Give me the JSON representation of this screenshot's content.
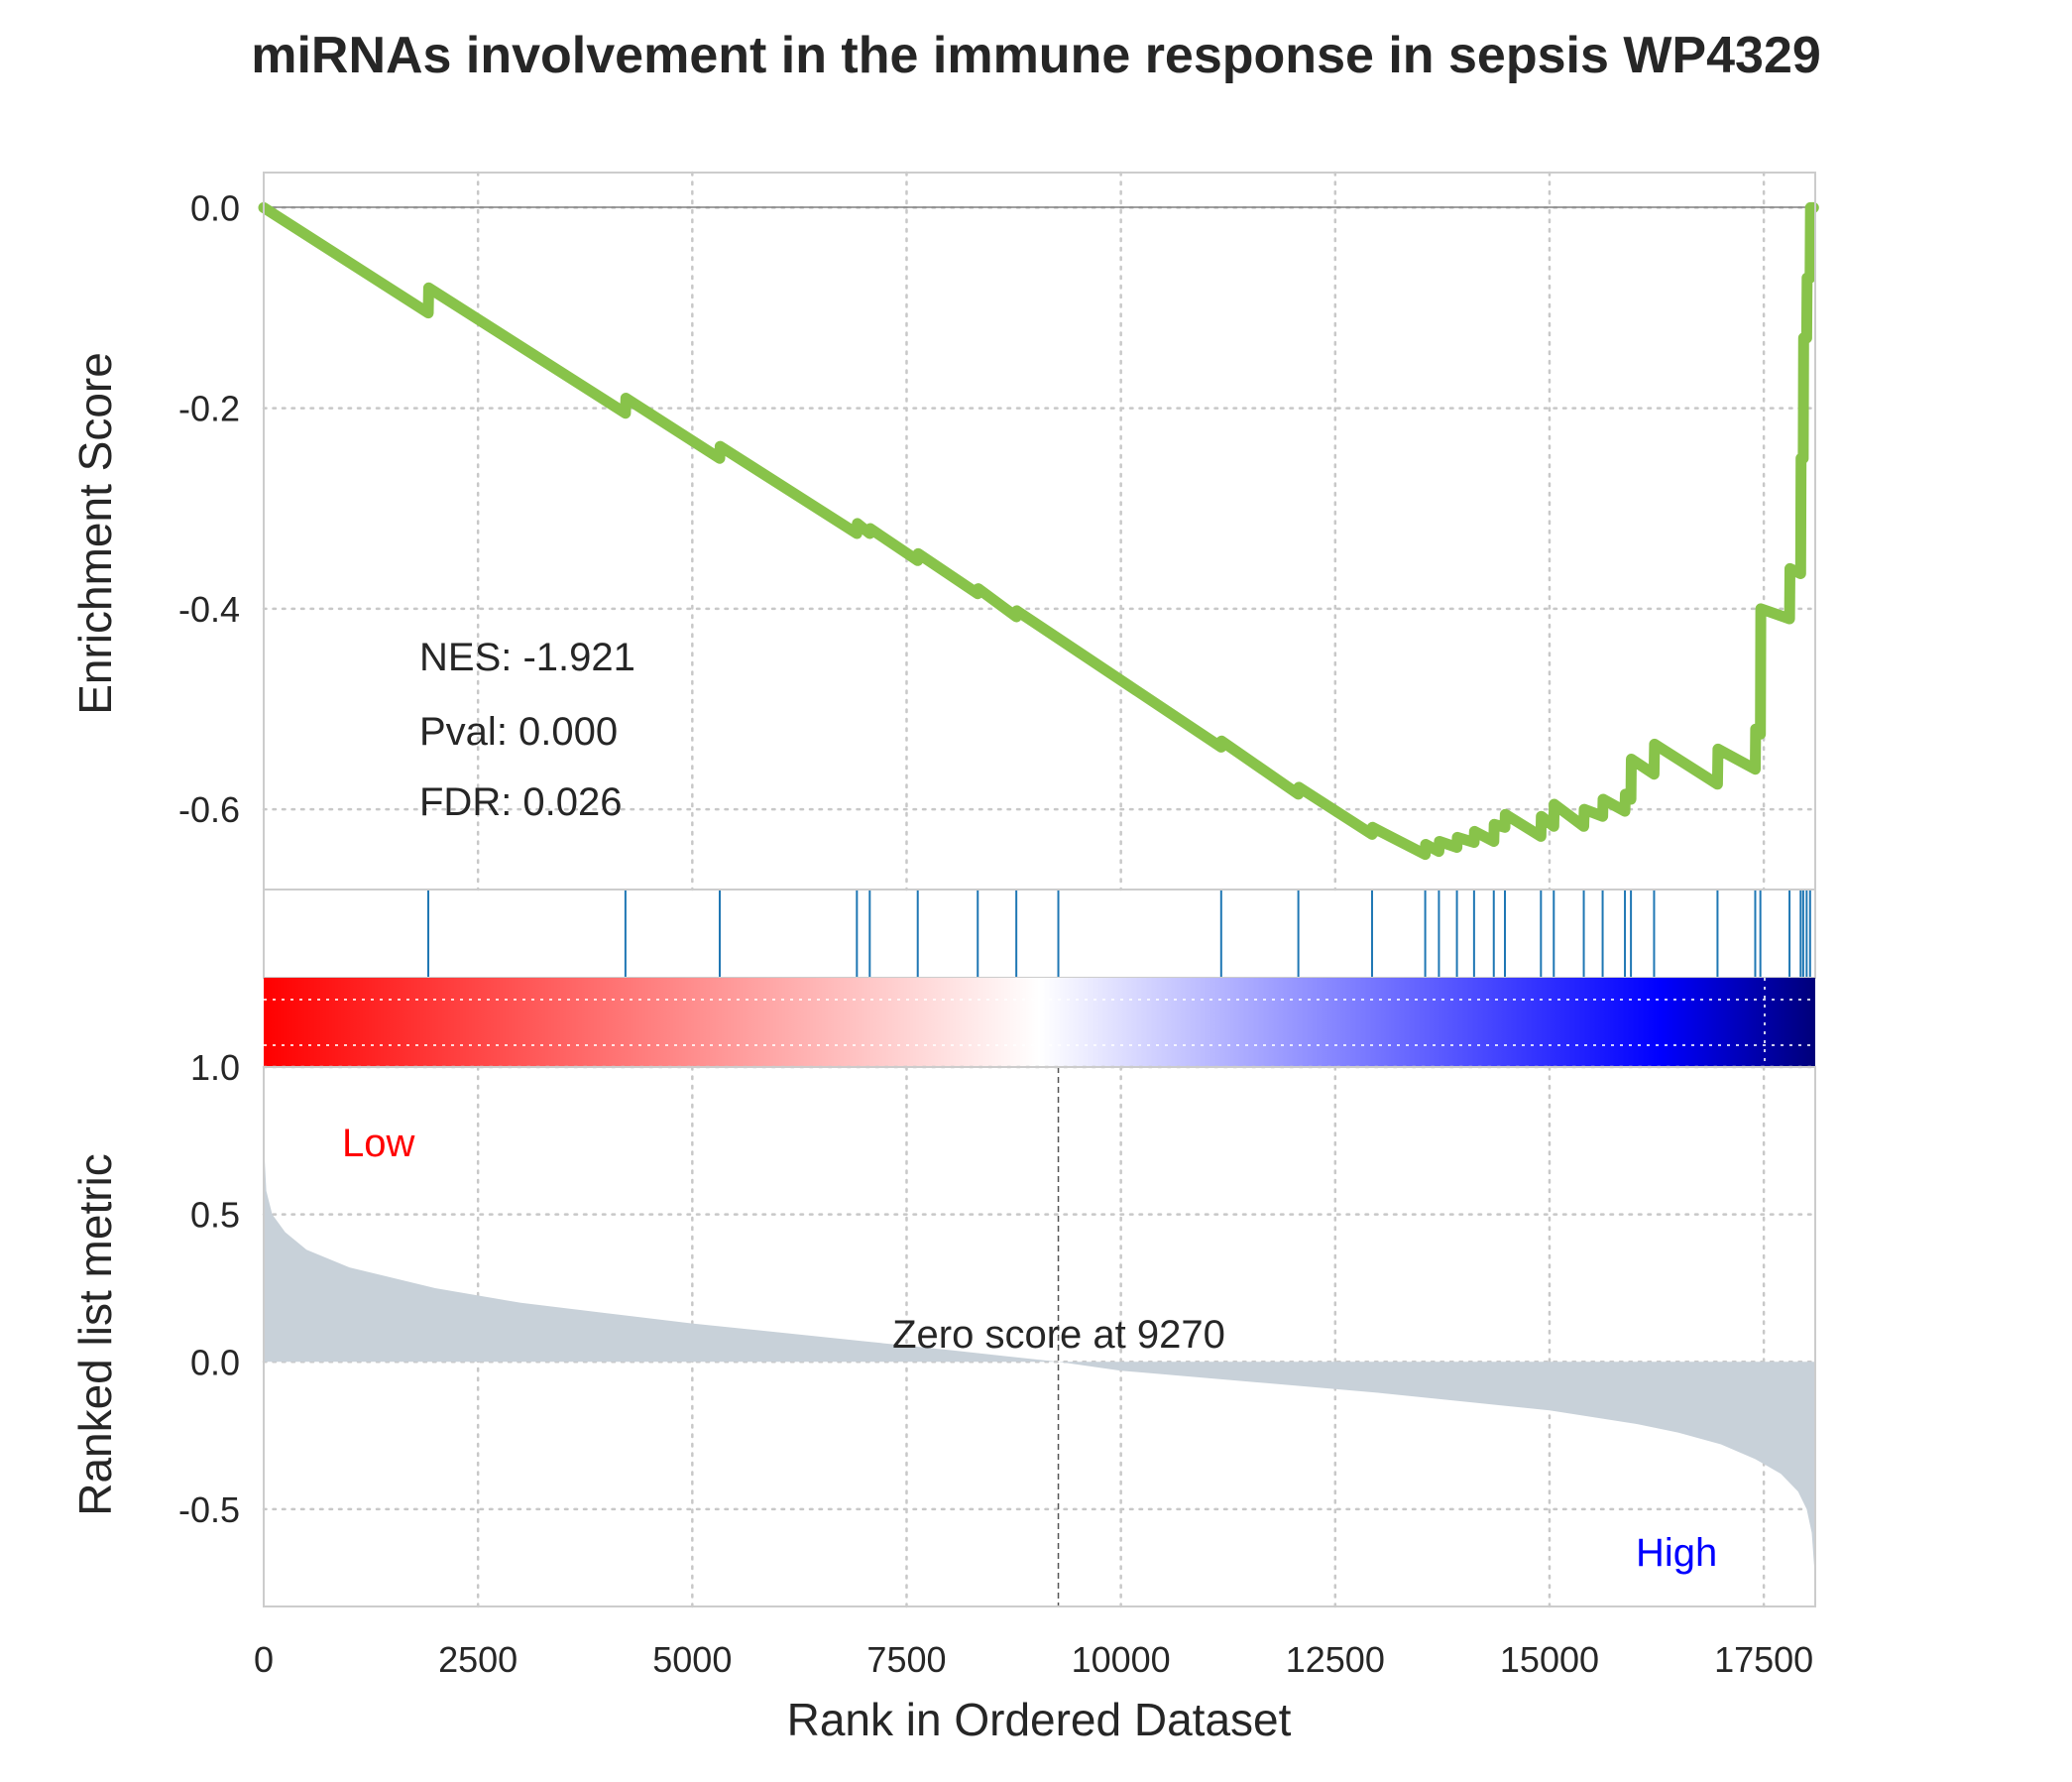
{
  "chart_data": {
    "type": "line",
    "title": "miRNAs involvement in the immune response in sepsis WP4329",
    "xlabel": "Rank in Ordered Dataset",
    "xlim": [
      0,
      18100
    ],
    "xticks": [
      "0",
      "2500",
      "5000",
      "7500",
      "10000",
      "12500",
      "15000",
      "17500"
    ],
    "xtick_values": [
      0,
      2500,
      5000,
      7500,
      10000,
      12500,
      15000,
      17500
    ],
    "grid": true,
    "enrichment_panel": {
      "ylabel": "Enrichment Score",
      "ylim": [
        -0.68,
        0.035
      ],
      "yticks": [
        "0.0",
        "-0.2",
        "-0.4",
        "-0.6"
      ],
      "ytick_values": [
        0.0,
        -0.2,
        -0.4,
        -0.6
      ],
      "line_color": "#88c34a",
      "series": [
        {
          "x": [
            0,
            1920,
            1925,
            4220,
            4225,
            5320,
            5325,
            6920,
            6925,
            7070,
            7075,
            7630,
            7635,
            8330,
            8335,
            8780,
            8785,
            11170,
            11175,
            12070,
            12075,
            12930,
            12935,
            13550,
            13555,
            13710,
            13715,
            13920,
            13925,
            14120,
            14125,
            14350,
            14355,
            14480,
            14485,
            14900,
            14905,
            15050,
            15055,
            15400,
            15405,
            15620,
            15625,
            15880,
            15885,
            15950,
            15955,
            16220,
            16225,
            16960,
            16965,
            17400,
            17405,
            17460,
            17465,
            17800,
            17805,
            17930,
            17935,
            17960,
            17965,
            18000,
            18005,
            18040,
            18045,
            18080
          ],
          "y": [
            0.0,
            -0.105,
            -0.08,
            -0.205,
            -0.19,
            -0.25,
            -0.238,
            -0.325,
            -0.315,
            -0.325,
            -0.32,
            -0.352,
            -0.345,
            -0.385,
            -0.38,
            -0.408,
            -0.402,
            -0.538,
            -0.532,
            -0.585,
            -0.578,
            -0.625,
            -0.618,
            -0.645,
            -0.635,
            -0.642,
            -0.632,
            -0.638,
            -0.628,
            -0.633,
            -0.622,
            -0.632,
            -0.615,
            -0.618,
            -0.605,
            -0.627,
            -0.607,
            -0.617,
            -0.595,
            -0.617,
            -0.6,
            -0.607,
            -0.59,
            -0.602,
            -0.585,
            -0.59,
            -0.55,
            -0.565,
            -0.535,
            -0.575,
            -0.54,
            -0.56,
            -0.52,
            -0.525,
            -0.4,
            -0.41,
            -0.36,
            -0.365,
            -0.25,
            -0.25,
            -0.13,
            -0.13,
            -0.07,
            -0.07,
            0.0,
            0.0
          ]
        }
      ],
      "annotations": [
        "NES: -1.921",
        "Pval: 0.000",
        "FDR: 0.026"
      ]
    },
    "hits_panel": {
      "hit_color": "#1f77b4",
      "hit_positions": [
        1920,
        4220,
        5320,
        6920,
        7070,
        7630,
        8330,
        8780,
        9270,
        11170,
        12070,
        12930,
        13550,
        13710,
        13920,
        14120,
        14350,
        14480,
        14900,
        15050,
        15400,
        15620,
        15880,
        15950,
        16220,
        16960,
        17400,
        17460,
        17800,
        17930,
        17960,
        18000,
        18040
      ]
    },
    "heatmap_panel": {
      "colormap": [
        "#ff0000",
        "#ffffff",
        "#0000ff",
        "#00007a"
      ]
    },
    "ranked_panel": {
      "ylabel": "Ranked list metric",
      "ylim": [
        -0.83,
        1.0
      ],
      "yticks": [
        "1.0",
        "0.5",
        "0.0",
        "-0.5"
      ],
      "ytick_values": [
        1.0,
        0.5,
        0.0,
        -0.5
      ],
      "fill_color": "#c8d1d9",
      "x": [
        0,
        30,
        100,
        250,
        500,
        1000,
        2000,
        3000,
        4000,
        5000,
        6000,
        7000,
        8000,
        9270,
        10000,
        11000,
        12000,
        13000,
        14000,
        15000,
        16000,
        16500,
        17000,
        17400,
        17700,
        17900,
        18000,
        18060,
        18090,
        18100
      ],
      "values": [
        0.75,
        0.58,
        0.5,
        0.44,
        0.38,
        0.32,
        0.25,
        0.2,
        0.165,
        0.13,
        0.1,
        0.07,
        0.04,
        0.0,
        -0.03,
        -0.055,
        -0.08,
        -0.105,
        -0.135,
        -0.165,
        -0.21,
        -0.24,
        -0.28,
        -0.33,
        -0.38,
        -0.44,
        -0.5,
        -0.58,
        -0.7,
        -0.78
      ],
      "zero_score_label": "Zero score at 9270",
      "zero_score_x": 9270,
      "low_label": "Low",
      "high_label": "High",
      "low_color": "#ff0000",
      "high_color": "#0000ff"
    }
  }
}
